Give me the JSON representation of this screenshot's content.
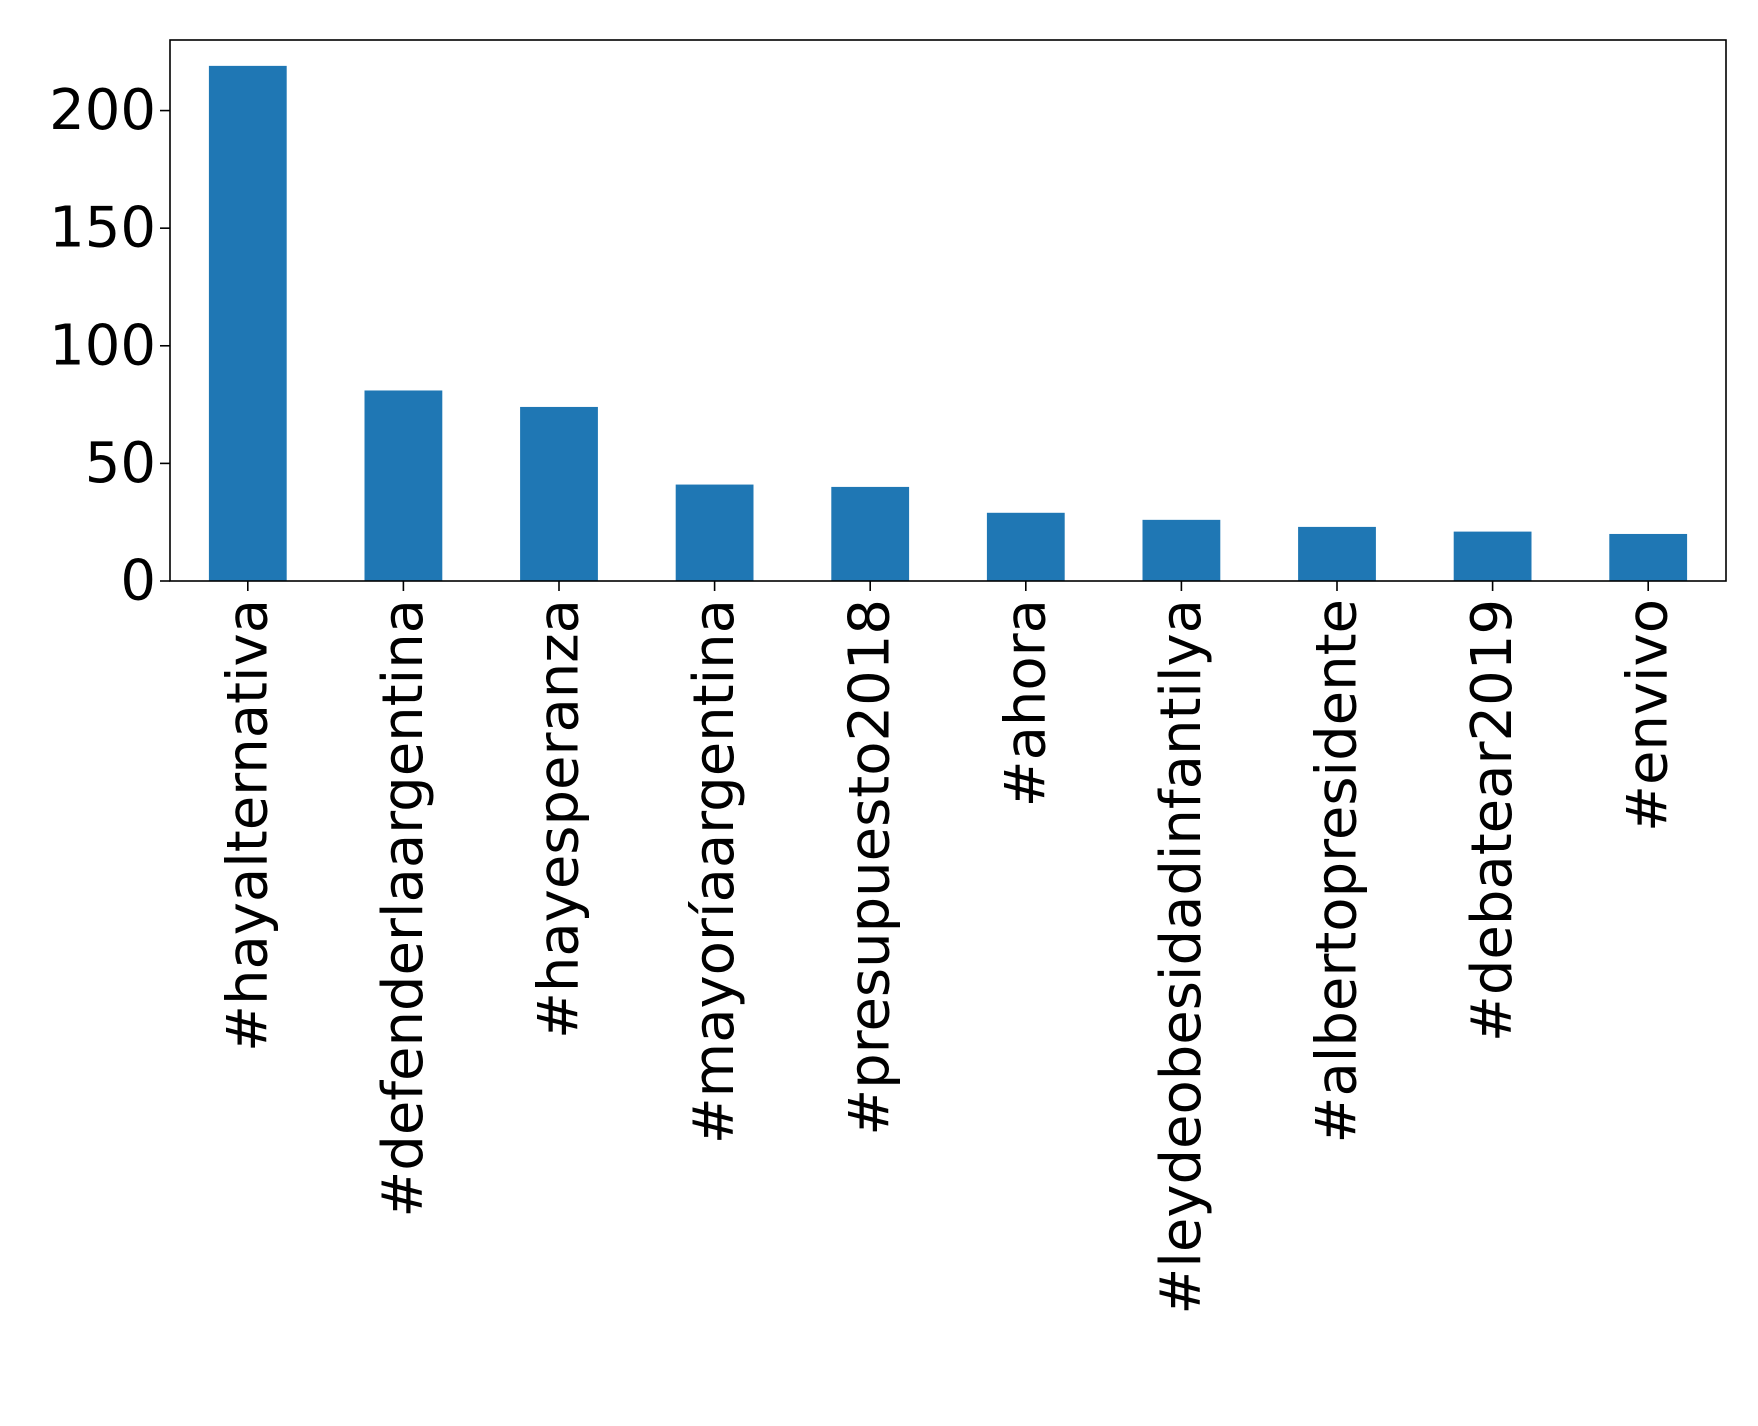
{
  "chart_data": {
    "type": "bar",
    "title": "",
    "xlabel": "",
    "ylabel": "",
    "categories": [
      "#hayalternativa",
      "#defenderlaargentina",
      "#hayesperanza",
      "#mayoríaargentina",
      "#presupuesto2018",
      "#ahora",
      "#leydeobesidadinfantilya",
      "#albertopresidente",
      "#debatear2019",
      "#envivo"
    ],
    "values": [
      219,
      81,
      74,
      41,
      40,
      29,
      26,
      23,
      21,
      20
    ],
    "ylim": [
      0,
      230
    ],
    "yticks": [
      0,
      50,
      100,
      150,
      200
    ],
    "bar_color": "#1f77b4",
    "grid": false,
    "legend": "none"
  }
}
